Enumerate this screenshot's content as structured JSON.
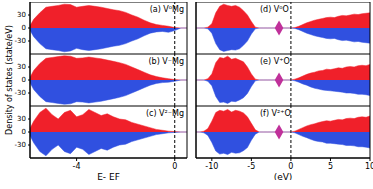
{
  "chart_data": [
    {
      "type": "area",
      "title": "(a) V⁰Mg",
      "tick_labels": "y",
      "x": [
        -5.9,
        -5.75,
        -5.5,
        -5.25,
        -5,
        -4.75,
        -4.5,
        -4.25,
        -4,
        -3.75,
        -3.5,
        -3.25,
        -3,
        -2.75,
        -2.5,
        -2.25,
        -2,
        -1.75,
        -1.5,
        -1.25,
        -1,
        -0.75,
        -0.5,
        -0.25,
        0,
        0.25,
        0.5
      ],
      "xlim": [
        -5.9,
        0.5
      ],
      "xticks": [
        -4,
        0
      ],
      "ylim": [
        -60,
        60
      ],
      "yticks": [
        -30,
        0,
        30
      ],
      "fermi_level": 0,
      "series": [
        {
          "color": "#f0202a",
          "values": [
            5,
            20,
            35,
            48,
            50,
            52,
            55,
            54,
            48,
            50,
            52,
            50,
            48,
            45,
            42,
            40,
            36,
            30,
            25,
            18,
            12,
            8,
            6,
            4,
            1,
            0,
            0
          ]
        },
        {
          "color": "#3050e0",
          "values": [
            -5,
            -20,
            -36,
            -48,
            -50,
            -52,
            -55,
            -53,
            -47,
            -50,
            -52,
            -50,
            -48,
            -45,
            -42,
            -40,
            -36,
            -30,
            -25,
            -18,
            -12,
            -9,
            -8,
            -10,
            -6,
            0,
            0
          ]
        }
      ]
    },
    {
      "type": "area",
      "title": "(b) V⁻Mg",
      "tick_labels": "y",
      "ylabel": "Density of states (state/eV)",
      "x": [
        -5.9,
        -5.75,
        -5.5,
        -5.25,
        -5,
        -4.75,
        -4.5,
        -4.25,
        -4,
        -3.75,
        -3.5,
        -3.25,
        -3,
        -2.75,
        -2.5,
        -2.25,
        -2,
        -1.75,
        -1.5,
        -1.25,
        -1,
        -0.75,
        -0.5,
        -0.25,
        0,
        0.25,
        0.5
      ],
      "xlim": [
        -5.9,
        0.5
      ],
      "xticks": [
        -4,
        0
      ],
      "ylim": [
        -60,
        60
      ],
      "yticks": [
        -30,
        0,
        30
      ],
      "fermi_level": 0,
      "series": [
        {
          "color": "#f0202a",
          "values": [
            6,
            22,
            38,
            50,
            52,
            54,
            56,
            55,
            50,
            51,
            53,
            51,
            49,
            46,
            43,
            40,
            36,
            30,
            24,
            18,
            12,
            8,
            5,
            3,
            1,
            0,
            0
          ]
        },
        {
          "color": "#3050e0",
          "values": [
            -6,
            -22,
            -38,
            -50,
            -52,
            -54,
            -56,
            -55,
            -50,
            -51,
            -53,
            -51,
            -49,
            -46,
            -43,
            -40,
            -36,
            -30,
            -24,
            -18,
            -12,
            -8,
            -6,
            -5,
            -3,
            0,
            0
          ]
        }
      ]
    },
    {
      "type": "area",
      "title": "(c) V²⁻Mg",
      "xlabel": "E- EF",
      "x": [
        -5.9,
        -5.75,
        -5.5,
        -5.25,
        -5,
        -4.75,
        -4.5,
        -4.25,
        -4,
        -3.75,
        -3.5,
        -3.25,
        -3,
        -2.75,
        -2.5,
        -2.25,
        -2,
        -1.75,
        -1.5,
        -1.25,
        -1,
        -0.75,
        -0.5,
        -0.25,
        0,
        0.25,
        0.5
      ],
      "xlim": [
        -5.9,
        0.5
      ],
      "xticks": [
        -4,
        0
      ],
      "ylim": [
        -60,
        60
      ],
      "yticks": [
        -30,
        0,
        30
      ],
      "fermi_level": 0,
      "series": [
        {
          "color": "#f0202a",
          "values": [
            8,
            25,
            45,
            55,
            40,
            30,
            45,
            50,
            35,
            40,
            52,
            45,
            38,
            42,
            35,
            30,
            28,
            22,
            18,
            14,
            10,
            6,
            4,
            2,
            1,
            0,
            0
          ]
        },
        {
          "color": "#3050e0",
          "values": [
            -8,
            -25,
            -45,
            -55,
            -40,
            -30,
            -45,
            -50,
            -35,
            -40,
            -52,
            -45,
            -38,
            -42,
            -35,
            -30,
            -28,
            -22,
            -18,
            -14,
            -10,
            -6,
            -4,
            -2,
            -1,
            0,
            0
          ]
        }
      ]
    },
    {
      "type": "area",
      "title": "(d) V⁰O",
      "tick_labels": false,
      "x": [
        -12,
        -11.5,
        -11,
        -10.5,
        -10,
        -9.5,
        -9,
        -8.5,
        -8,
        -7.5,
        -7,
        -6.5,
        -6,
        -5.5,
        -5,
        -4.5,
        -4,
        -3.5,
        -3,
        -2.5,
        -2,
        -1.5,
        -1,
        -0.5,
        0,
        0.5,
        1,
        1.5,
        2,
        2.5,
        3,
        3.5,
        4,
        4.5,
        5,
        5.5,
        6,
        6.5,
        7,
        7.5,
        8,
        8.5,
        9,
        9.5,
        10
      ],
      "xlim": [
        -12,
        10
      ],
      "xticks": [
        -10,
        -5,
        0,
        5,
        10
      ],
      "ylim": [
        -60,
        60
      ],
      "yticks": [
        -30,
        0,
        30
      ],
      "fermi_level": 0,
      "markers": [
        {
          "x": -1.5,
          "y": 0
        }
      ],
      "marker_color": "#c0309a",
      "series": [
        {
          "color": "#f0202a",
          "values": [
            0,
            0,
            0,
            2,
            10,
            35,
            50,
            55,
            52,
            50,
            52,
            48,
            40,
            30,
            15,
            2,
            0,
            0,
            0,
            0,
            0,
            0,
            0,
            0,
            0,
            1,
            4,
            8,
            12,
            15,
            18,
            20,
            22,
            24,
            25,
            24,
            27,
            29,
            28,
            30,
            32,
            31,
            33,
            34,
            35
          ]
        },
        {
          "color": "#3050e0",
          "values": [
            0,
            0,
            0,
            -2,
            -12,
            -36,
            -50,
            -54,
            -52,
            -50,
            -51,
            -48,
            -40,
            -30,
            -14,
            -2,
            0,
            0,
            0,
            0,
            0,
            0,
            0,
            0,
            0,
            -1,
            -4,
            -8,
            -12,
            -15,
            -18,
            -20,
            -22,
            -24,
            -25,
            -24,
            -27,
            -29,
            -28,
            -30,
            -32,
            -31,
            -33,
            -34,
            -35
          ]
        }
      ]
    },
    {
      "type": "area",
      "title": "(e) V⁺O",
      "tick_labels": false,
      "x": [
        -12,
        -11.5,
        -11,
        -10.5,
        -10,
        -9.5,
        -9,
        -8.5,
        -8,
        -7.5,
        -7,
        -6.5,
        -6,
        -5.5,
        -5,
        -4.5,
        -4,
        -3.5,
        -3,
        -2.5,
        -2,
        -1.5,
        -1,
        -0.5,
        0,
        0.5,
        1,
        1.5,
        2,
        2.5,
        3,
        3.5,
        4,
        4.5,
        5,
        5.5,
        6,
        6.5,
        7,
        7.5,
        8,
        8.5,
        9,
        9.5,
        10
      ],
      "xlim": [
        -12,
        10
      ],
      "xticks": [
        -10,
        -5,
        0,
        5,
        10
      ],
      "ylim": [
        -60,
        60
      ],
      "yticks": [
        -30,
        0,
        30
      ],
      "fermi_level": 0,
      "markers": [
        {
          "x": -1.5,
          "y": 0
        }
      ],
      "marker_color": "#c0309a",
      "series": [
        {
          "color": "#f0202a",
          "values": [
            0,
            0,
            0,
            3,
            14,
            40,
            52,
            50,
            55,
            48,
            50,
            46,
            42,
            30,
            14,
            2,
            0,
            0,
            0,
            0,
            0,
            0,
            0,
            0,
            0,
            2,
            5,
            9,
            13,
            16,
            18,
            21,
            22,
            25,
            24,
            26,
            28,
            27,
            30,
            31,
            30,
            33,
            34,
            33,
            36
          ]
        },
        {
          "color": "#3050e0",
          "values": [
            0,
            0,
            0,
            -3,
            -13,
            -38,
            -52,
            -51,
            -54,
            -49,
            -50,
            -46,
            -41,
            -31,
            -15,
            -2,
            0,
            0,
            0,
            0,
            0,
            0,
            0,
            0,
            0,
            -2,
            -5,
            -9,
            -12,
            -16,
            -19,
            -21,
            -23,
            -24,
            -25,
            -26,
            -27,
            -28,
            -30,
            -30,
            -31,
            -33,
            -33,
            -34,
            -36
          ]
        }
      ]
    },
    {
      "type": "area",
      "title": "(f) V²⁺O",
      "tick_labels": "x",
      "xlabel": "(eV)",
      "x": [
        -12,
        -11.5,
        -11,
        -10.5,
        -10,
        -9.5,
        -9,
        -8.5,
        -8,
        -7.5,
        -7,
        -6.5,
        -6,
        -5.5,
        -5,
        -4.5,
        -4,
        -3.5,
        -3,
        -2.5,
        -2,
        -1.5,
        -1,
        -0.5,
        0,
        0.5,
        1,
        1.5,
        2,
        2.5,
        3,
        3.5,
        4,
        4.5,
        5,
        5.5,
        6,
        6.5,
        7,
        7.5,
        8,
        8.5,
        9,
        9.5,
        10
      ],
      "xlim": [
        -12,
        10
      ],
      "xticks": [
        -10,
        -5,
        0,
        5,
        10
      ],
      "ylim": [
        -60,
        60
      ],
      "yticks": [
        -30,
        0,
        30
      ],
      "fermi_level": 0,
      "markers": [
        {
          "x": -1.5,
          "y": 0
        }
      ],
      "marker_color": "#c0309a",
      "series": [
        {
          "color": "#f0202a",
          "values": [
            0,
            0,
            2,
            8,
            25,
            45,
            50,
            48,
            52,
            46,
            50,
            48,
            44,
            35,
            20,
            5,
            0,
            0,
            0,
            0,
            0,
            0,
            0,
            0,
            0,
            2,
            6,
            10,
            14,
            17,
            19,
            22,
            24,
            26,
            25,
            27,
            29,
            28,
            31,
            32,
            31,
            34,
            35,
            34,
            37
          ]
        },
        {
          "color": "#3050e0",
          "values": [
            0,
            0,
            -2,
            -8,
            -24,
            -44,
            -51,
            -49,
            -52,
            -47,
            -49,
            -48,
            -43,
            -36,
            -19,
            -5,
            0,
            0,
            0,
            0,
            0,
            0,
            0,
            0,
            0,
            -2,
            -6,
            -10,
            -13,
            -17,
            -20,
            -22,
            -23,
            -26,
            -26,
            -27,
            -28,
            -29,
            -31,
            -31,
            -32,
            -34,
            -34,
            -35,
            -37
          ]
        }
      ]
    }
  ]
}
